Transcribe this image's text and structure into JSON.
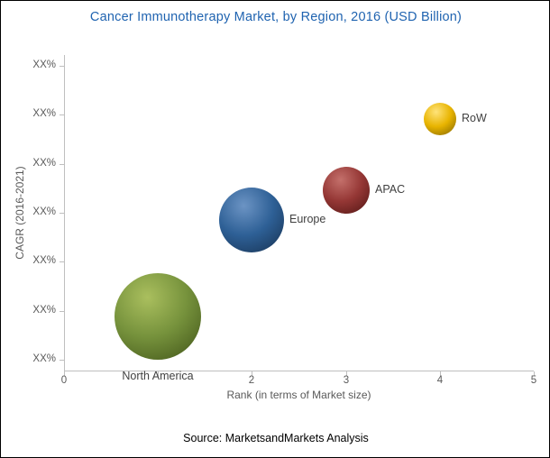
{
  "title": "Cancer Immunotherapy Market, by Region, 2016 (USD Billion)",
  "source": "Source: MarketsandMarkets Analysis",
  "colors": {
    "title_text": "#1F63B0",
    "axis_text": "#595959",
    "label_text": "#404040",
    "axis_line": "#BFBFBF"
  },
  "chart_data": {
    "type": "scatter",
    "subtype": "bubble",
    "title": "Cancer Immunotherapy Market, by Region, 2016 (USD Billion)",
    "xlabel": "Rank (in terms of Market size)",
    "ylabel": "CAGR (2016-2021)",
    "xlim": [
      0,
      5
    ],
    "grid": false,
    "legend": "none",
    "x_tick_marks": [
      0,
      1,
      2,
      3,
      4,
      5
    ],
    "x_tick_labels": [
      {
        "value": 0,
        "label": "0"
      },
      {
        "value": 2,
        "label": "2"
      },
      {
        "value": 3,
        "label": "3"
      },
      {
        "value": 4,
        "label": "4"
      },
      {
        "value": 5,
        "label": "5"
      }
    ],
    "y_tick_labels": [
      "XX%",
      "XX%",
      "XX%",
      "XX%",
      "XX%",
      "XX%",
      "XX%"
    ],
    "points": [
      {
        "name": "North America",
        "x": 1,
        "y_tick_pos": 0.88,
        "cagr": "XX%",
        "radius_px": 48,
        "label_side": "bottom",
        "color_light": "#AABf5E",
        "color_base": "#76923C",
        "color_dark": "#3F5217"
      },
      {
        "name": "Europe",
        "x": 2,
        "y_tick_pos": 2.85,
        "cagr": "XX%",
        "radius_px": 36,
        "label_side": "right",
        "color_light": "#6C94C4",
        "color_base": "#2E6096",
        "color_dark": "#16304F"
      },
      {
        "name": "APAC",
        "x": 3,
        "y_tick_pos": 3.46,
        "cagr": "XX%",
        "radius_px": 26,
        "label_side": "right",
        "color_light": "#C4706B",
        "color_base": "#953735",
        "color_dark": "#4F1513"
      },
      {
        "name": "RoW",
        "x": 4,
        "y_tick_pos": 4.91,
        "cagr": "XX%",
        "radius_px": 18,
        "label_side": "right",
        "color_light": "#FFE37A",
        "color_base": "#E8B400",
        "color_dark": "#7E6200"
      }
    ]
  }
}
